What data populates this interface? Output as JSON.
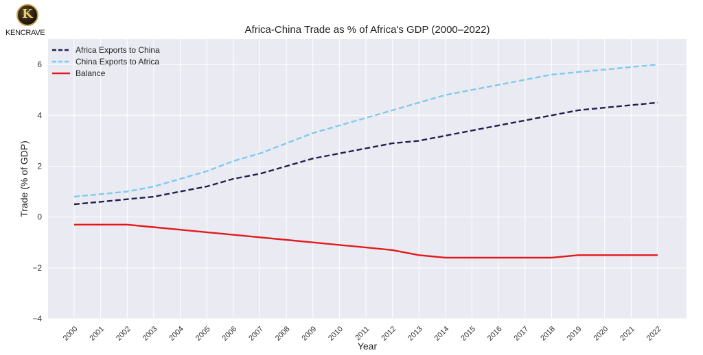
{
  "logo": {
    "letter": "K",
    "text": "KENCRAVE"
  },
  "chart_data": {
    "type": "line",
    "title": "Africa-China Trade as % of Africa's GDP (2000–2022)",
    "xlabel": "Year",
    "ylabel": "Trade (% of GDP)",
    "categories": [
      "2000",
      "2001",
      "2002",
      "2003",
      "2004",
      "2005",
      "2006",
      "2007",
      "2008",
      "2009",
      "2010",
      "2011",
      "2012",
      "2013",
      "2014",
      "2015",
      "2016",
      "2017",
      "2018",
      "2019",
      "2020",
      "2021",
      "2022"
    ],
    "ylim": [
      -4,
      7
    ],
    "yticks": [
      -4,
      -2,
      0,
      2,
      4,
      6
    ],
    "ytick_labels": [
      "−4",
      "−2",
      "0",
      "2",
      "4",
      "6"
    ],
    "grid": true,
    "legend_position": "top-left",
    "series": [
      {
        "name": "Africa Exports to China",
        "color": "#1f1f4f",
        "style": "dashed",
        "values": [
          0.5,
          0.6,
          0.7,
          0.8,
          1.0,
          1.2,
          1.5,
          1.7,
          2.0,
          2.3,
          2.5,
          2.7,
          2.9,
          3.0,
          3.2,
          3.4,
          3.6,
          3.8,
          4.0,
          4.2,
          4.3,
          4.4,
          4.5
        ]
      },
      {
        "name": "China Exports to Africa",
        "color": "#7dcbee",
        "style": "dashed",
        "values": [
          0.8,
          0.9,
          1.0,
          1.2,
          1.5,
          1.8,
          2.2,
          2.5,
          2.9,
          3.3,
          3.6,
          3.9,
          4.2,
          4.5,
          4.8,
          5.0,
          5.2,
          5.4,
          5.6,
          5.7,
          5.8,
          5.9,
          6.0
        ]
      },
      {
        "name": "Balance",
        "color": "#e31a1c",
        "style": "solid",
        "values": [
          -0.3,
          -0.3,
          -0.3,
          -0.4,
          -0.5,
          -0.6,
          -0.7,
          -0.8,
          -0.9,
          -1.0,
          -1.1,
          -1.2,
          -1.3,
          -1.5,
          -1.6,
          -1.6,
          -1.6,
          -1.6,
          -1.6,
          -1.5,
          -1.5,
          -1.5,
          -1.5
        ]
      }
    ]
  }
}
